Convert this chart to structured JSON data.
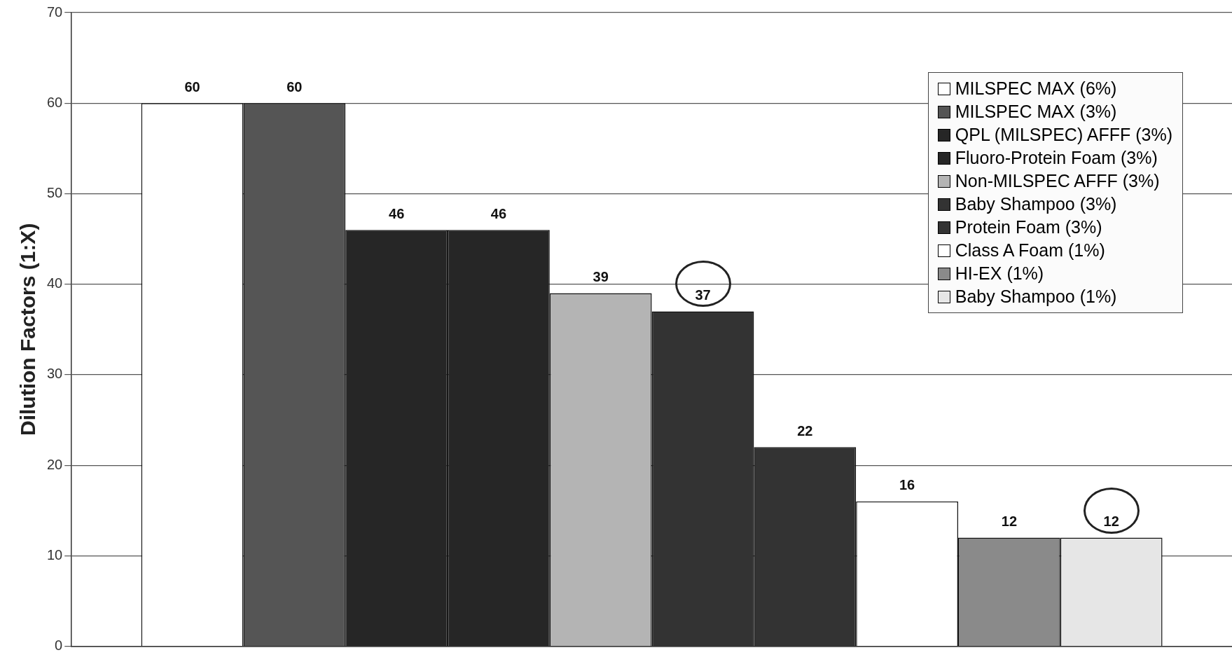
{
  "chart_data": {
    "type": "bar",
    "ylabel": "Dilution Factors (1:X)",
    "categories": [
      null
    ],
    "series": [
      {
        "name": "MILSPEC MAX (6%)",
        "color": "#ffffff",
        "values": [
          60
        ]
      },
      {
        "name": "MILSPEC MAX (3%)",
        "color": "#555555",
        "values": [
          60
        ]
      },
      {
        "name": "QPL (MILSPEC) AFFF (3%)",
        "color": "#262626",
        "values": [
          46
        ]
      },
      {
        "name": "Fluoro-Protein Foam (3%)",
        "color": "#262626",
        "values": [
          46
        ]
      },
      {
        "name": "Non-MILSPEC AFFF (3%)",
        "color": "#b4b4b4",
        "values": [
          39
        ]
      },
      {
        "name": "Baby Shampoo (3%)",
        "color": "#333333",
        "values": [
          37
        ]
      },
      {
        "name": "Protein Foam (3%)",
        "color": "#333333",
        "values": [
          22
        ]
      },
      {
        "name": "Class A Foam (1%)",
        "color": "#ffffff",
        "values": [
          16
        ]
      },
      {
        "name": "HI-EX (1%)",
        "color": "#8a8a8a",
        "values": [
          12
        ]
      },
      {
        "name": "Baby Shampoo (1%)",
        "color": "#e6e6e6",
        "values": [
          12
        ]
      }
    ],
    "ylim": [
      0,
      70
    ],
    "yticks": [
      0,
      10,
      20,
      30,
      40,
      50,
      60,
      70
    ],
    "grid": "y",
    "legend": "top right",
    "data_labels": true
  }
}
